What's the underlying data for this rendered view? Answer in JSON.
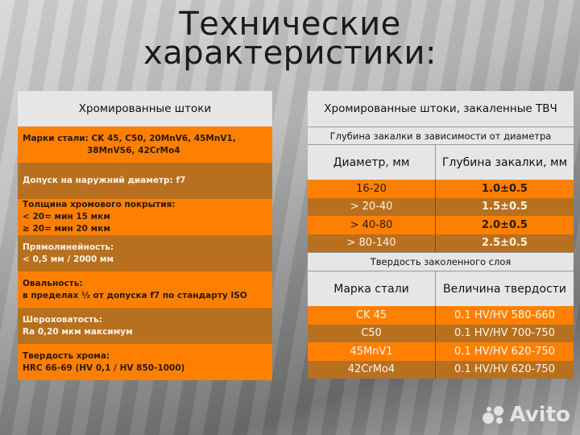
{
  "title": {
    "line1": "Технические",
    "line2": "характеристики:"
  },
  "left_panel": {
    "header": "Хромированные штоки",
    "rows": [
      {
        "lines": [
          "Марки стали: CK 45,   C50,    20MnV6,    45MnV1,",
          "38MnVS6,    42CrMo4"
        ],
        "style": "orange"
      },
      {
        "lines": [
          "Допуск на наружний диаметр: f7"
        ],
        "style": "brown"
      },
      {
        "lines": [
          "Толщина хромового покрытия:",
          "< 20= мин 15 мкм",
          "≥ 20= мин 20 мкм"
        ],
        "style": "orange"
      },
      {
        "lines": [
          "Прямолинейность:",
          "< 0,5 мм / 2000 мм"
        ],
        "style": "brown"
      },
      {
        "lines": [
          "Овальность:",
          "в пределах ½ от допуска f7 по стандарту ISO"
        ],
        "style": "orange"
      },
      {
        "lines": [
          "Шероховатость:",
          "Ra 0,20 мкм максимум"
        ],
        "style": "brown"
      },
      {
        "lines": [
          "Твердость хрома:",
          "HRC 66-69 (HV 0,1 / HV 850-1000)"
        ],
        "style": "orange"
      }
    ]
  },
  "right_panel": {
    "header": "Хромированные штоки, закаленные ТВЧ",
    "depth_section": {
      "title": "Глубина закалки в зависимости от диаметра",
      "col1": "Диаметр, мм",
      "col2": "Глубина закалки, мм",
      "rows": [
        {
          "diameter": "16-20",
          "depth": "1.0±0.5"
        },
        {
          "diameter": "> 20-40",
          "depth": "1.5±0.5"
        },
        {
          "diameter": "> 40-80",
          "depth": "2.0±0.5"
        },
        {
          "diameter": "> 80-140",
          "depth": "2.5±0.5"
        }
      ]
    },
    "hardness_section": {
      "title": "Твердость заколенного слоя",
      "col1": "Марка стали",
      "col2": "Величина твердости",
      "rows": [
        {
          "grade": "CK 45",
          "hardness": "0.1 HV/HV 580-660"
        },
        {
          "grade": "C50",
          "hardness": "0.1 HV/HV 700-750"
        },
        {
          "grade": "45MnV1",
          "hardness": "0.1 HV/HV 620-750"
        },
        {
          "grade": "42CrMo4",
          "hardness": "0.1 HV/HV 620-750"
        }
      ]
    }
  },
  "watermark": {
    "text": "Avito",
    "icon": "avito-dots-logo"
  },
  "colors": {
    "orange": "#ff8000",
    "brown": "#b8701f",
    "header_grey": "#e6e6e6"
  }
}
